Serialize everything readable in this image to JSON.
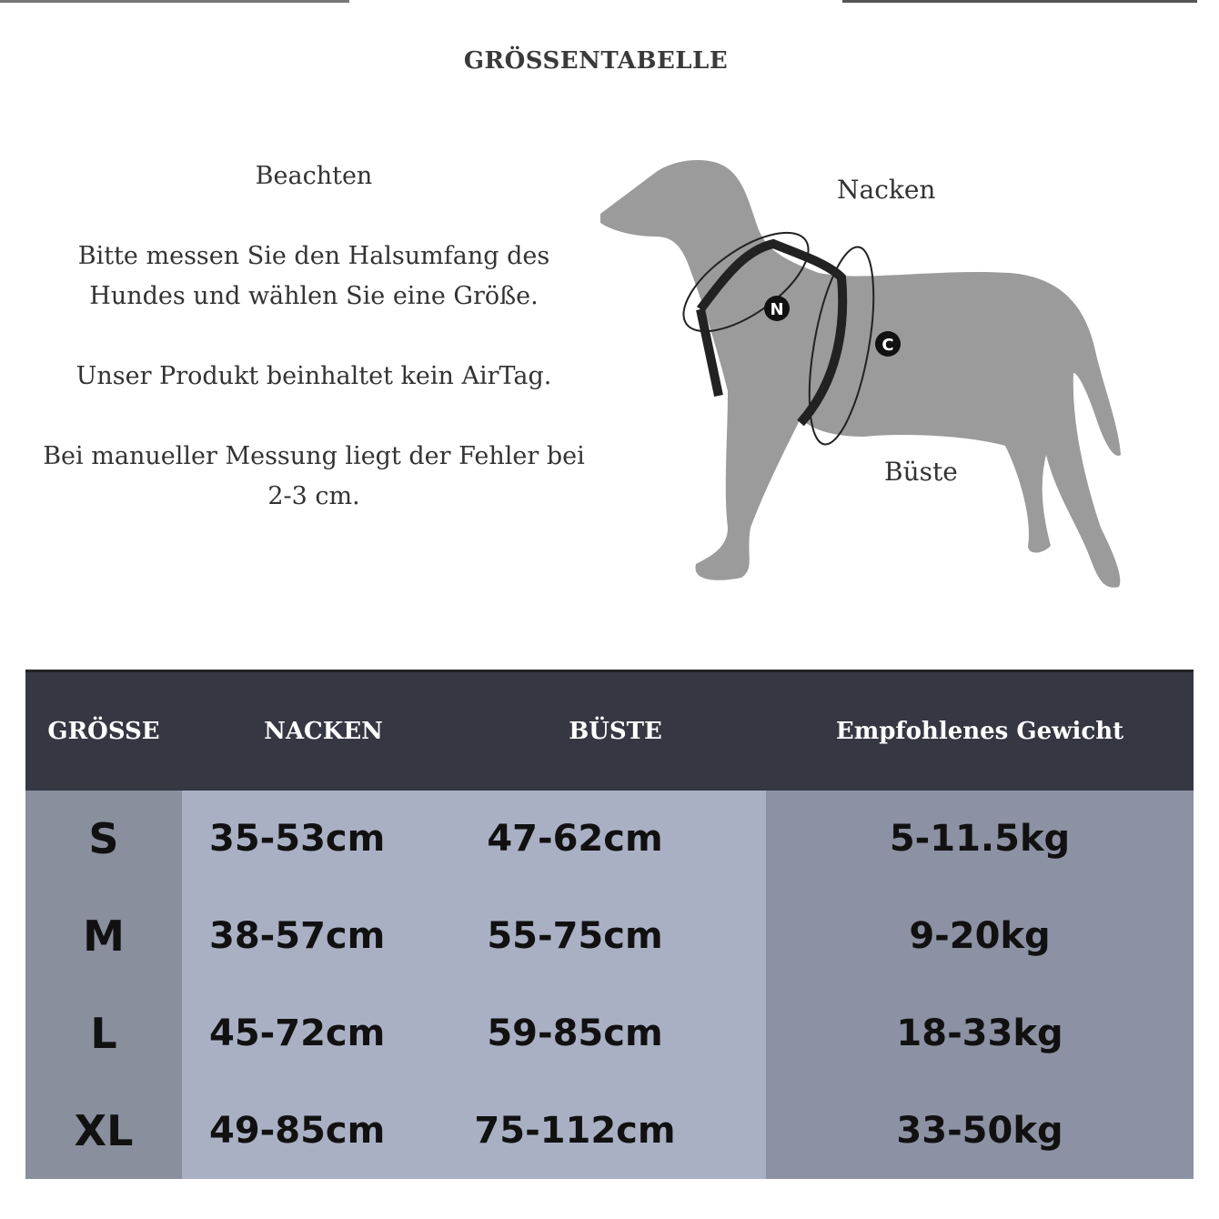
{
  "title": "GRÖSSENTABELLE",
  "notes": {
    "heading": "Beachten",
    "line1": "Bitte messen Sie den Halsumfang des Hundes und wählen Sie eine Größe.",
    "line2": "Unser Produkt beinhaltet kein AirTag.",
    "line3": "Bei manueller Messung liegt der Fehler bei 2-3 cm."
  },
  "diagram": {
    "neck_label": "Nacken",
    "bust_label": "Büste",
    "neck_marker": "N",
    "chest_marker": "C"
  },
  "table": {
    "headers": [
      "GRÖSSE",
      "NACKEN",
      "BÜSTE",
      "Empfohlenes Gewicht"
    ],
    "rows": [
      [
        "S",
        "35-53cm",
        "47-62cm",
        "5-11.5kg"
      ],
      [
        "M",
        "38-57cm",
        "55-75cm",
        "9-20kg"
      ],
      [
        "L",
        "45-72cm",
        "59-85cm",
        "18-33kg"
      ],
      [
        "XL",
        "49-85cm",
        "75-112cm",
        "33-50kg"
      ]
    ]
  },
  "colors": {
    "header": "#353743",
    "size_col": "#8a8f9e",
    "measure_cols": "#aab0c4",
    "weight_col": "#8c91a3"
  }
}
